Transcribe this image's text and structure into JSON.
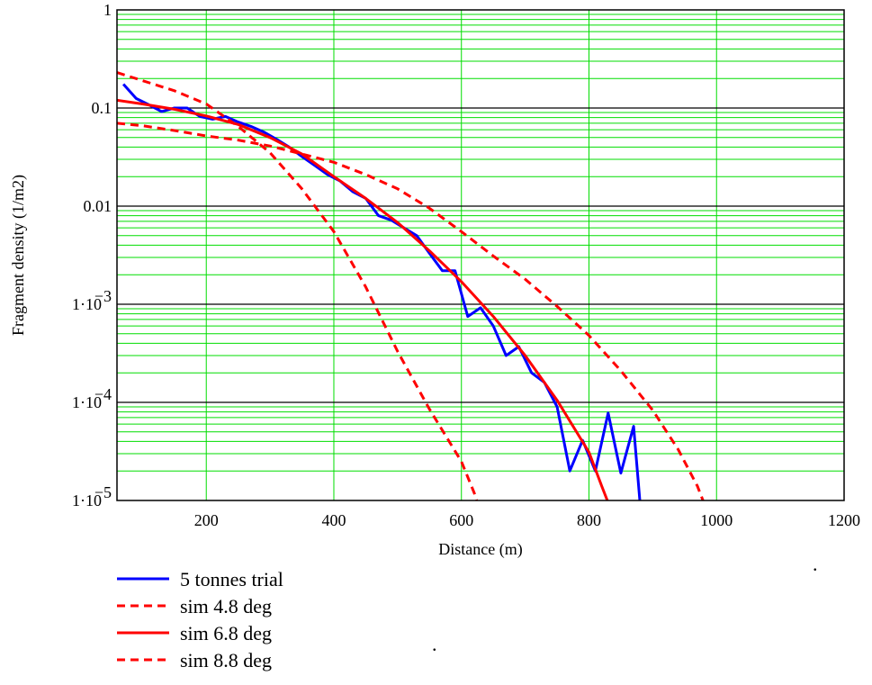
{
  "chart_data": {
    "type": "line",
    "title": "",
    "xlabel": "Distance (m)",
    "ylabel": "Fragment density (1/m2)",
    "xlim": [
      60,
      1200
    ],
    "ylim": [
      1e-05,
      1
    ],
    "yscale": "log",
    "grid": true,
    "x_ticks": [
      200,
      400,
      600,
      800,
      1000,
      1200
    ],
    "x_tick_labels": [
      "200",
      "400",
      "600",
      "800",
      "1000",
      "1200"
    ],
    "y_ticks": [
      {
        "value": 1,
        "label": "1",
        "base": "",
        "exp": ""
      },
      {
        "value": 0.1,
        "label": "0.1",
        "base": "",
        "exp": ""
      },
      {
        "value": 0.01,
        "label": "0.01",
        "base": "",
        "exp": ""
      },
      {
        "value": 0.001,
        "label": "",
        "base": "1·10",
        "exp": "−3"
      },
      {
        "value": 0.0001,
        "label": "",
        "base": "1·10",
        "exp": "−4"
      },
      {
        "value": 1e-05,
        "label": "",
        "base": "1·10",
        "exp": "−5"
      }
    ],
    "legend_position": "below",
    "series": [
      {
        "name": "5 tonnes trial",
        "color": "#0000ff",
        "dash": "solid",
        "points": [
          [
            70,
            0.175
          ],
          [
            90,
            0.125
          ],
          [
            110,
            0.108
          ],
          [
            130,
            0.092
          ],
          [
            150,
            0.1
          ],
          [
            170,
            0.1
          ],
          [
            190,
            0.082
          ],
          [
            210,
            0.077
          ],
          [
            230,
            0.082
          ],
          [
            250,
            0.072
          ],
          [
            270,
            0.065
          ],
          [
            290,
            0.057
          ],
          [
            310,
            0.048
          ],
          [
            330,
            0.04
          ],
          [
            350,
            0.032
          ],
          [
            370,
            0.026
          ],
          [
            390,
            0.021
          ],
          [
            410,
            0.018
          ],
          [
            430,
            0.014
          ],
          [
            450,
            0.012
          ],
          [
            470,
            0.008
          ],
          [
            490,
            0.0072
          ],
          [
            510,
            0.006
          ],
          [
            530,
            0.005
          ],
          [
            550,
            0.0033
          ],
          [
            570,
            0.0022
          ],
          [
            590,
            0.0022
          ],
          [
            610,
            0.00075
          ],
          [
            630,
            0.00092
          ],
          [
            650,
            0.0006
          ],
          [
            670,
            0.0003
          ],
          [
            690,
            0.00037
          ],
          [
            710,
            0.0002
          ],
          [
            730,
            0.00016
          ],
          [
            750,
            9e-05
          ],
          [
            770,
            2e-05
          ],
          [
            790,
            4.1e-05
          ],
          [
            810,
            2e-05
          ],
          [
            830,
            7.8e-05
          ],
          [
            850,
            1.9e-05
          ],
          [
            870,
            5.7e-05
          ],
          [
            880,
            9.5e-06
          ]
        ]
      },
      {
        "name": "sim 4.8 deg",
        "color": "#ff0000",
        "dash": "dashed",
        "points": [
          [
            60,
            0.07
          ],
          [
            100,
            0.066
          ],
          [
            150,
            0.059
          ],
          [
            200,
            0.052
          ],
          [
            250,
            0.047
          ],
          [
            300,
            0.041
          ],
          [
            350,
            0.034
          ],
          [
            400,
            0.028
          ],
          [
            450,
            0.021
          ],
          [
            500,
            0.015
          ],
          [
            550,
            0.0095
          ],
          [
            600,
            0.0055
          ],
          [
            650,
            0.0031
          ],
          [
            700,
            0.0018
          ],
          [
            750,
            0.00095
          ],
          [
            800,
            0.00048
          ],
          [
            850,
            0.00021
          ],
          [
            900,
            8.3e-05
          ],
          [
            940,
            3.3e-05
          ],
          [
            970,
            1.4e-05
          ],
          [
            980,
            9.5e-06
          ]
        ]
      },
      {
        "name": "sim 6.8 deg",
        "color": "#ff0000",
        "dash": "solid",
        "points": [
          [
            60,
            0.12
          ],
          [
            100,
            0.11
          ],
          [
            150,
            0.097
          ],
          [
            200,
            0.083
          ],
          [
            250,
            0.068
          ],
          [
            300,
            0.05
          ],
          [
            350,
            0.034
          ],
          [
            400,
            0.02
          ],
          [
            450,
            0.012
          ],
          [
            500,
            0.0068
          ],
          [
            550,
            0.0035
          ],
          [
            600,
            0.0017
          ],
          [
            650,
            0.00075
          ],
          [
            700,
            0.0003
          ],
          [
            750,
            0.000105
          ],
          [
            800,
            3.1e-05
          ],
          [
            820,
            1.4e-05
          ],
          [
            830,
            9.5e-06
          ]
        ]
      },
      {
        "name": "sim 8.8 deg",
        "color": "#ff0000",
        "dash": "dashed",
        "points": [
          [
            60,
            0.23
          ],
          [
            100,
            0.19
          ],
          [
            150,
            0.15
          ],
          [
            200,
            0.11
          ],
          [
            250,
            0.065
          ],
          [
            300,
            0.035
          ],
          [
            350,
            0.015
          ],
          [
            400,
            0.0055
          ],
          [
            450,
            0.0015
          ],
          [
            500,
            0.00033
          ],
          [
            550,
            8.5e-05
          ],
          [
            600,
            2.5e-05
          ],
          [
            620,
            1.2e-05
          ],
          [
            625,
            9.5e-06
          ]
        ]
      }
    ],
    "annotations": [
      ".",
      "."
    ]
  }
}
